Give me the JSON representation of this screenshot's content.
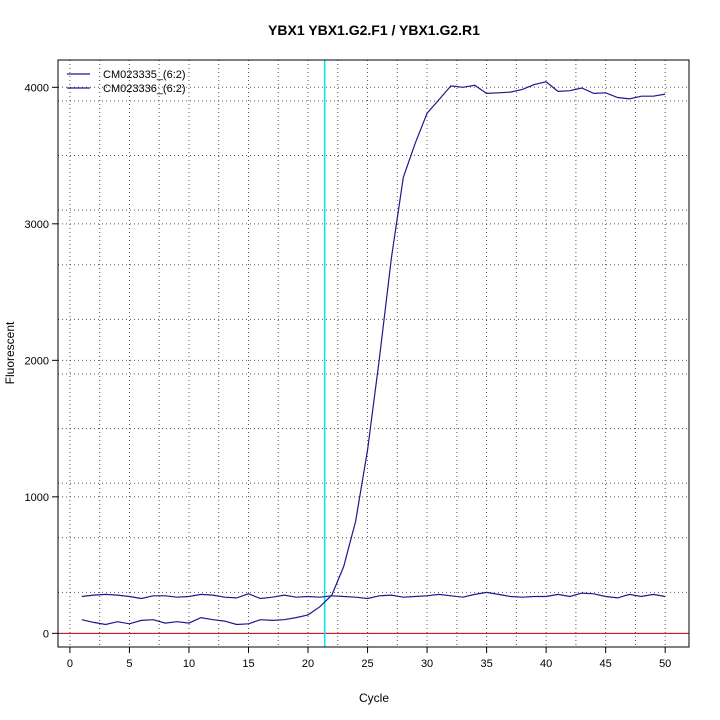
{
  "chart_data": {
    "type": "line",
    "title": "YBX1  YBX1.G2.F1 / YBX1.G2.R1",
    "xlabel": "Cycle",
    "ylabel": "Fluorescent",
    "xlim": [
      -1,
      52
    ],
    "ylim": [
      -100,
      4200
    ],
    "x_ticks": [
      0,
      5,
      10,
      15,
      20,
      25,
      30,
      35,
      40,
      45,
      50
    ],
    "y_ticks": [
      0,
      1000,
      2000,
      3000,
      4000
    ],
    "grid": true,
    "grid_x": [
      2.5,
      7.5,
      12.5,
      17.5,
      22.5,
      27.5,
      32.5,
      37.5,
      42.5,
      47.5
    ],
    "grid_y": [
      300,
      700,
      1100,
      1500,
      1900,
      2300,
      2700,
      3100,
      3500,
      3900
    ],
    "legend_position": "top-left",
    "threshold_line": {
      "y": 0,
      "color": "#cc0000"
    },
    "cycle_marker": {
      "x": 21.4,
      "color": "#00e5ee"
    },
    "x": [
      1,
      2,
      3,
      4,
      5,
      6,
      7,
      8,
      9,
      10,
      11,
      12,
      13,
      14,
      15,
      16,
      17,
      18,
      19,
      20,
      21,
      22,
      23,
      24,
      25,
      26,
      27,
      28,
      29,
      30,
      31,
      32,
      33,
      34,
      35,
      36,
      37,
      38,
      39,
      40,
      41,
      42,
      43,
      44,
      45,
      46,
      47,
      48,
      49,
      50
    ],
    "series": [
      {
        "name": "CM023335_(6:2)",
        "color": "#1a1a8c",
        "values": [
          100,
          80,
          65,
          85,
          70,
          95,
          100,
          75,
          85,
          75,
          115,
          100,
          90,
          65,
          70,
          100,
          95,
          100,
          115,
          135,
          195,
          280,
          490,
          820,
          1340,
          2020,
          2750,
          3340,
          3590,
          3810,
          3910,
          4010,
          4000,
          4015,
          3955,
          3960,
          3965,
          3985,
          4020,
          4040,
          3970,
          3975,
          3995,
          3955,
          3960,
          3925,
          3915,
          3935,
          3935,
          3950
        ]
      },
      {
        "name": "CM023336_(6:2)",
        "color": "#1a1a8c",
        "values": [
          270,
          280,
          285,
          280,
          270,
          255,
          275,
          275,
          265,
          270,
          285,
          280,
          265,
          260,
          290,
          255,
          265,
          280,
          265,
          270,
          265,
          275,
          270,
          265,
          255,
          275,
          280,
          265,
          270,
          275,
          285,
          275,
          265,
          285,
          300,
          285,
          270,
          265,
          270,
          270,
          285,
          270,
          295,
          290,
          270,
          260,
          285,
          270,
          285,
          270
        ]
      }
    ]
  }
}
